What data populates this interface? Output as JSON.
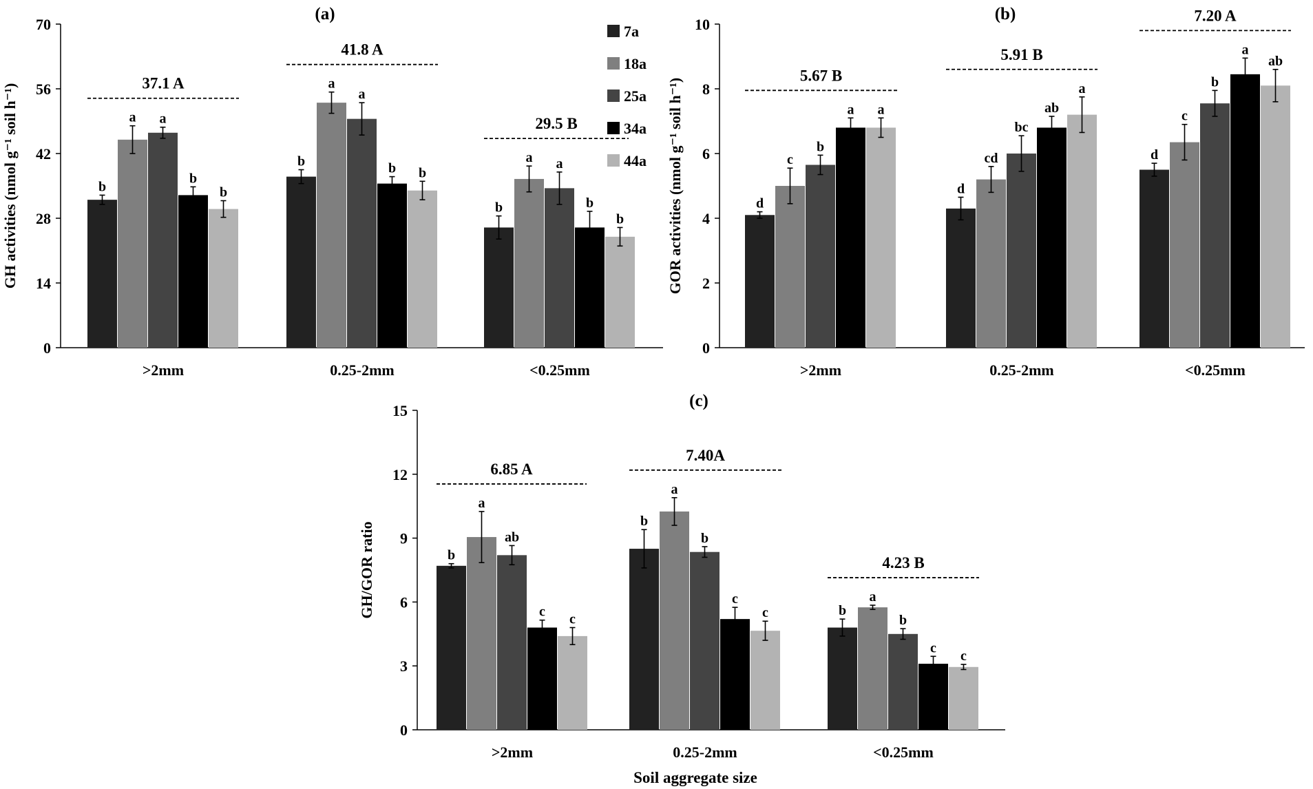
{
  "figure": {
    "x_axis_title": "Soil aggregate size"
  },
  "legend": {
    "entries": [
      "7a",
      "18a",
      "25a",
      "34a",
      "44a"
    ],
    "colors": [
      "#222222",
      "#7f7f7f",
      "#444444",
      "#000000",
      "#b3b3b3"
    ]
  },
  "chart_data": [
    {
      "id": "a",
      "type": "bar",
      "title": "(a)",
      "ylabel": "GH activities (nmol g⁻¹ soil h⁻¹)",
      "xlabel": "",
      "ylim": [
        0,
        70
      ],
      "yticks": [
        "0",
        "14",
        "28",
        "42",
        "56",
        "70"
      ],
      "categories": [
        ">2mm",
        "0.25-2mm",
        "<0.25mm"
      ],
      "group_means": [
        "37.1 A",
        "41.8 A",
        "29.5 B"
      ],
      "series": [
        {
          "name": "7a",
          "values": [
            32.0,
            37.0,
            26.0
          ],
          "errors": [
            1.0,
            1.5,
            2.5
          ],
          "letters": [
            "b",
            "b",
            "b"
          ]
        },
        {
          "name": "18a",
          "values": [
            45.0,
            53.0,
            36.5
          ],
          "errors": [
            3.0,
            2.3,
            2.8
          ],
          "letters": [
            "a",
            "a",
            "a"
          ]
        },
        {
          "name": "25a",
          "values": [
            46.5,
            49.5,
            34.5
          ],
          "errors": [
            1.2,
            3.5,
            3.5
          ],
          "letters": [
            "a",
            "a",
            "a"
          ]
        },
        {
          "name": "34a",
          "values": [
            33.0,
            35.5,
            26.0
          ],
          "errors": [
            1.8,
            1.5,
            3.5
          ],
          "letters": [
            "b",
            "b",
            "b"
          ]
        },
        {
          "name": "44a",
          "values": [
            30.0,
            34.0,
            24.0
          ],
          "errors": [
            1.8,
            2.0,
            2.0
          ],
          "letters": [
            "b",
            "b",
            "b"
          ]
        }
      ]
    },
    {
      "id": "b",
      "type": "bar",
      "title": "(b)",
      "ylabel": "GOR activities (nmol g⁻¹ soil h⁻¹)",
      "xlabel": "",
      "ylim": [
        0,
        10
      ],
      "yticks": [
        "0",
        "2",
        "4",
        "6",
        "8",
        "10"
      ],
      "categories": [
        ">2mm",
        "0.25-2mm",
        "<0.25mm"
      ],
      "group_means": [
        "5.67 B",
        "5.91 B",
        "7.20 A"
      ],
      "series": [
        {
          "name": "7a",
          "values": [
            4.1,
            4.3,
            5.5
          ],
          "errors": [
            0.1,
            0.35,
            0.2
          ],
          "letters": [
            "d",
            "d",
            "d"
          ]
        },
        {
          "name": "18a",
          "values": [
            5.0,
            5.2,
            6.35
          ],
          "errors": [
            0.55,
            0.4,
            0.55
          ],
          "letters": [
            "c",
            "cd",
            "c"
          ]
        },
        {
          "name": "25a",
          "values": [
            5.65,
            6.0,
            7.55
          ],
          "errors": [
            0.3,
            0.55,
            0.4
          ],
          "letters": [
            "b",
            "bc",
            "b"
          ]
        },
        {
          "name": "34a",
          "values": [
            6.8,
            6.8,
            8.45
          ],
          "errors": [
            0.3,
            0.35,
            0.5
          ],
          "letters": [
            "a",
            "ab",
            "a"
          ]
        },
        {
          "name": "44a",
          "values": [
            6.8,
            7.2,
            8.1
          ],
          "errors": [
            0.3,
            0.55,
            0.5
          ],
          "letters": [
            "a",
            "a",
            "ab"
          ]
        }
      ]
    },
    {
      "id": "c",
      "type": "bar",
      "title": "(c)",
      "ylabel": "GH/GOR ratio",
      "xlabel": "Soil aggregate size",
      "ylim": [
        0,
        15
      ],
      "yticks": [
        "0",
        "3",
        "6",
        "9",
        "12",
        "15"
      ],
      "categories": [
        ">2mm",
        "0.25-2mm",
        "<0.25mm"
      ],
      "group_means": [
        "6.85 A",
        "7.40A",
        "4.23 B"
      ],
      "series": [
        {
          "name": "7a",
          "values": [
            7.7,
            8.5,
            4.8
          ],
          "errors": [
            0.1,
            0.9,
            0.4
          ],
          "letters": [
            "b",
            "b",
            "b"
          ]
        },
        {
          "name": "18a",
          "values": [
            9.05,
            10.25,
            5.75
          ],
          "errors": [
            1.2,
            0.65,
            0.1
          ],
          "letters": [
            "a",
            "a",
            "a"
          ]
        },
        {
          "name": "25a",
          "values": [
            8.2,
            8.35,
            4.5
          ],
          "errors": [
            0.45,
            0.25,
            0.25
          ],
          "letters": [
            "ab",
            "b",
            "b"
          ]
        },
        {
          "name": "34a",
          "values": [
            4.8,
            5.2,
            3.1
          ],
          "errors": [
            0.35,
            0.55,
            0.35
          ],
          "letters": [
            "c",
            "c",
            "c"
          ]
        },
        {
          "name": "44a",
          "values": [
            4.4,
            4.65,
            2.95
          ],
          "errors": [
            0.4,
            0.45,
            0.12
          ],
          "letters": [
            "c",
            "c",
            "c"
          ]
        }
      ]
    }
  ]
}
